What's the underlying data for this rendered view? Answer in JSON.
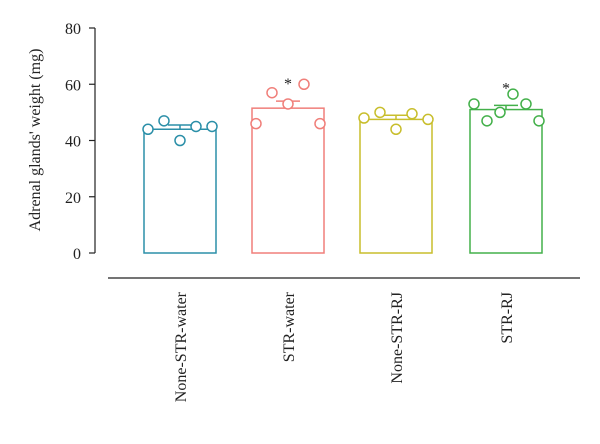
{
  "chart_data": {
    "type": "bar",
    "title": "",
    "xlabel": "",
    "ylabel": "Adrenal glands' weight (mg)",
    "ylim": [
      0,
      80
    ],
    "yticks": [
      0,
      20,
      40,
      60,
      80
    ],
    "grid": false,
    "categories": [
      "None-STR-water",
      "STR-water",
      "None-STR-RJ",
      "STR-RJ"
    ],
    "values": [
      44,
      51.5,
      47.5,
      51
    ],
    "sem": [
      1.5,
      2.5,
      1.5,
      1.5
    ],
    "colors": [
      "#2b8fa8",
      "#f07f7a",
      "#c8be2c",
      "#43b04a"
    ],
    "significance": [
      "",
      "*",
      "",
      "*"
    ],
    "points": [
      [
        44,
        47,
        40,
        45,
        45
      ],
      [
        46,
        57,
        53,
        60,
        46
      ],
      [
        48,
        50,
        44,
        49.5,
        47.5
      ],
      [
        53,
        47,
        50,
        56.5,
        53,
        47
      ]
    ]
  }
}
